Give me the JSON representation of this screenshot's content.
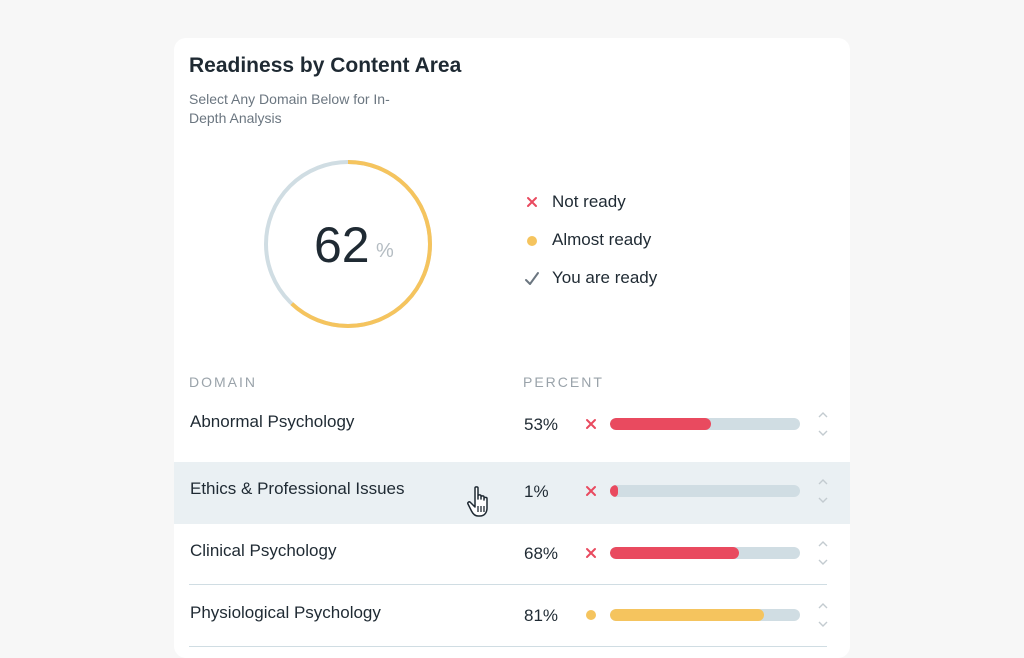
{
  "card": {
    "title": "Readiness by Content Area",
    "subtitle": "Select Any Domain Below for In-Depth Analysis"
  },
  "gauge": {
    "value": 62,
    "value_label": "62",
    "unit": "%",
    "fill_color": "#f5c45e",
    "track_color": "#d0dde3"
  },
  "legend": [
    {
      "label": "Not ready",
      "icon": "x-icon",
      "color": "#e94a5f"
    },
    {
      "label": "Almost ready",
      "icon": "dot-icon",
      "color": "#f5c45e"
    },
    {
      "label": "You are ready",
      "icon": "check-icon",
      "color": "#6b7680"
    }
  ],
  "table": {
    "columns": {
      "domain": "DOMAIN",
      "percent": "PERCENT"
    },
    "rows": [
      {
        "name": "Abnormal Psychology",
        "percent_label": "53%",
        "percent": 53,
        "status": "not-ready",
        "color": "#e94a5f"
      },
      {
        "name": "Ethics & Professional Issues",
        "percent_label": "1%",
        "percent": 1,
        "status": "not-ready",
        "color": "#e94a5f"
      },
      {
        "name": "Clinical Psychology",
        "percent_label": "68%",
        "percent": 68,
        "status": "not-ready",
        "color": "#e94a5f"
      },
      {
        "name": "Physiological Psychology",
        "percent_label": "81%",
        "percent": 81,
        "status": "almost-ready",
        "color": "#f5c45e"
      }
    ]
  }
}
